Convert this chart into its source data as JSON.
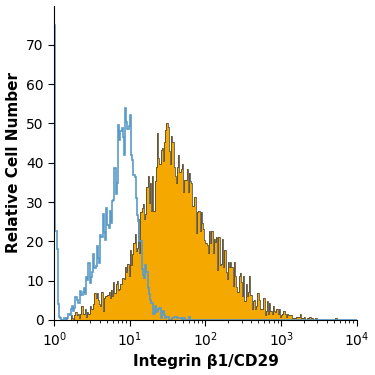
{
  "title": "",
  "xlabel": "Integrin β1/CD29",
  "ylabel": "Relative Cell Number",
  "xlim": [
    1,
    10000
  ],
  "ylim": [
    0,
    80
  ],
  "yticks": [
    0,
    10,
    20,
    30,
    40,
    50,
    60,
    70
  ],
  "background_color": "#ffffff",
  "isotype_color": "#5b9bc8",
  "antibody_color": "#f5a800",
  "antibody_edge_color": "#555555",
  "xlabel_fontsize": 11,
  "ylabel_fontsize": 11,
  "isotype_peak_log": 0.92,
  "isotype_peak_height": 54,
  "antibody_peak_log": 1.42,
  "antibody_peak_height": 50,
  "spike_height": 75,
  "spike_log": 0.04,
  "n_bins": 256
}
